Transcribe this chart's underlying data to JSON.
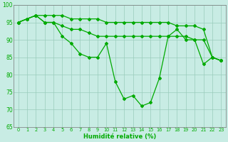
{
  "line1": [
    95,
    96,
    97,
    97,
    97,
    97,
    96,
    96,
    96,
    96,
    95,
    95,
    95,
    95,
    95,
    95,
    95,
    95,
    94,
    94,
    94,
    93,
    85,
    84
  ],
  "line2": [
    95,
    96,
    97,
    95,
    95,
    94,
    93,
    93,
    92,
    91,
    91,
    91,
    91,
    91,
    91,
    91,
    91,
    91,
    91,
    91,
    90,
    90,
    85,
    84
  ],
  "line3": [
    95,
    96,
    97,
    95,
    95,
    91,
    89,
    86,
    85,
    85,
    89,
    78,
    73,
    74,
    71,
    72,
    79,
    91,
    93,
    90,
    90,
    83,
    85,
    84
  ],
  "x": [
    0,
    1,
    2,
    3,
    4,
    5,
    6,
    7,
    8,
    9,
    10,
    11,
    12,
    13,
    14,
    15,
    16,
    17,
    18,
    19,
    20,
    21,
    22,
    23
  ],
  "line_color": "#00aa00",
  "bg_color": "#c8ece4",
  "grid_color": "#99ccbb",
  "xlabel": "Humidité relative (%)",
  "xlabel_color": "#00aa00",
  "ylim": [
    65,
    100
  ],
  "yticks": [
    65,
    70,
    75,
    80,
    85,
    90,
    95,
    100
  ],
  "xtick_labels": [
    "0",
    "1",
    "2",
    "3",
    "4",
    "5",
    "6",
    "7",
    "8",
    "9",
    "10",
    "11",
    "12",
    "13",
    "14",
    "15",
    "16",
    "17",
    "18",
    "19",
    "20",
    "21",
    "22",
    "23"
  ]
}
